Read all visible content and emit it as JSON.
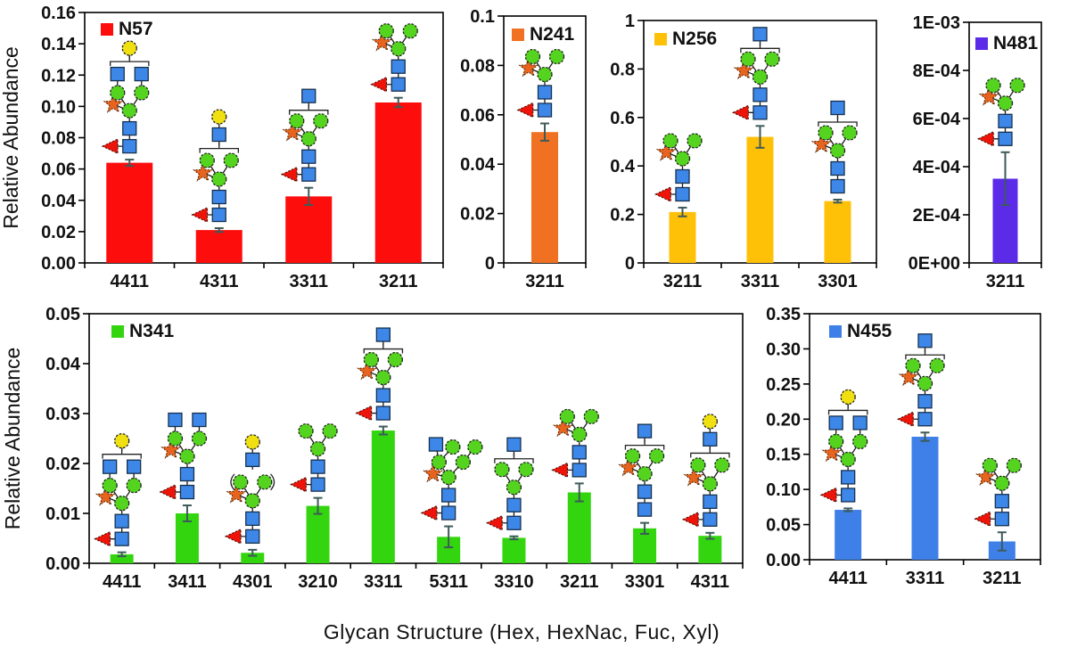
{
  "figure": {
    "xlabel": "Glycan Structure (Hex, HexNac, Fuc, Xyl)",
    "background": "#FFFFFF",
    "axis_color": "#000000",
    "error_bar_color": "#3E5A5A"
  },
  "glycan_palette": {
    "green_circle": "#54D41E",
    "yellow_circle": "#F0E012",
    "blue_square": "#3D87E8",
    "red_triangle": "#EE1409",
    "orange_star": "#E8641E"
  },
  "chart_data": [
    {
      "type": "bar",
      "site": "N57",
      "bar_color": "#FE0D0D",
      "ylabel": "Relative Abundance",
      "ymin": 0,
      "ymax": 0.16,
      "yticks": [
        "0.16",
        "0.14",
        "0.12",
        "0.10",
        "0.08",
        "0.06",
        "0.04",
        "0.02",
        "0.00"
      ],
      "categories": [
        "4411",
        "4311",
        "3311",
        "3211"
      ],
      "values": [
        0.064,
        0.021,
        0.0425,
        0.1025
      ],
      "errors": [
        0.002,
        0.0012,
        0.0055,
        0.003
      ],
      "glycans": [
        "4411",
        "4311",
        "3311",
        "3211"
      ],
      "legend_position": "top-left",
      "grid": false
    },
    {
      "type": "bar",
      "site": "N241",
      "bar_color": "#F07122",
      "ylabel": "",
      "ymin": 0,
      "ymax": 0.1,
      "yticks": [
        "0.1",
        "0.08",
        "0.06",
        "0.04",
        "0.02",
        "0"
      ],
      "categories": [
        "3211"
      ],
      "values": [
        0.053
      ],
      "errors": [
        0.0035
      ],
      "glycans": [
        "3211"
      ],
      "legend_position": "top-left",
      "grid": false
    },
    {
      "type": "bar",
      "site": "N256",
      "bar_color": "#FFC008",
      "ylabel": "",
      "ymin": 0,
      "ymax": 1,
      "yticks": [
        "1",
        "0.8",
        "0.6",
        "0.4",
        "0.2",
        "0"
      ],
      "categories": [
        "3211",
        "3311",
        "3301"
      ],
      "values": [
        0.21,
        0.52,
        0.255
      ],
      "errors": [
        0.018,
        0.045,
        0.006
      ],
      "glycans": [
        "3211",
        "3311",
        "3301"
      ],
      "legend_position": "top-left",
      "grid": false
    },
    {
      "type": "bar",
      "site": "N481",
      "bar_color": "#5B2BE8",
      "ylabel": "",
      "ymin": 0,
      "ymax": 0.001,
      "yticks": [
        "1E-03",
        "8E-04",
        "6E-04",
        "4E-04",
        "2E-04",
        "0E+00"
      ],
      "categories": [
        "3211"
      ],
      "values": [
        0.00035
      ],
      "errors": [
        0.00011
      ],
      "glycans": [
        "3211"
      ],
      "legend_position": "top-left",
      "grid": false
    },
    {
      "type": "bar",
      "site": "N341",
      "bar_color": "#33D60E",
      "ylabel": "Relative Abundance",
      "ymin": 0,
      "ymax": 0.05,
      "yticks": [
        "0.05",
        "0.04",
        "0.03",
        "0.02",
        "0.01",
        "0.00"
      ],
      "categories": [
        "4411",
        "3411",
        "4301",
        "3210",
        "3311",
        "5311",
        "3310",
        "3211",
        "3301",
        "4311"
      ],
      "values": [
        0.0018,
        0.01,
        0.0021,
        0.0115,
        0.0266,
        0.0053,
        0.0051,
        0.0142,
        0.007,
        0.0055
      ],
      "errors": [
        0.0004,
        0.0016,
        0.0006,
        0.0016,
        0.0008,
        0.0021,
        0.0003,
        0.0018,
        0.0011,
        0.0006
      ],
      "glycans": [
        "4411",
        "3411",
        "4301",
        "3210",
        "3311",
        "5311",
        "3310",
        "3211",
        "3301",
        "4311"
      ],
      "legend_position": "top-left",
      "grid": false
    },
    {
      "type": "bar",
      "site": "N455",
      "bar_color": "#3F80E8",
      "ylabel": "",
      "ymin": 0,
      "ymax": 0.35,
      "yticks": [
        "0.35",
        "0.30",
        "0.25",
        "0.20",
        "0.15",
        "0.10",
        "0.05",
        "0.00"
      ],
      "categories": [
        "4411",
        "3311",
        "3211"
      ],
      "values": [
        0.071,
        0.175,
        0.026
      ],
      "errors": [
        0.002,
        0.006,
        0.013
      ],
      "glycans": [
        "4411",
        "3311",
        "3211"
      ],
      "legend_position": "top-left",
      "grid": false
    }
  ],
  "glycan_shapes": {
    "3211": {
      "nodes": [
        [
          "rt",
          -1.5,
          0
        ],
        [
          "bs",
          0,
          0
        ],
        [
          "bs",
          0,
          1
        ],
        [
          "gc",
          0,
          2
        ],
        [
          "os",
          -1.35,
          2.35
        ],
        [
          "gc",
          -1,
          3
        ],
        [
          "gc",
          1,
          3
        ]
      ],
      "links": [
        [
          -1.5,
          0,
          0,
          0
        ],
        [
          0,
          0,
          0,
          2
        ],
        [
          -1.35,
          2.35,
          0,
          2
        ],
        [
          -1,
          3,
          0,
          2
        ],
        [
          1,
          3,
          0,
          2
        ]
      ]
    },
    "3311": {
      "nodes": [
        [
          "rt",
          -1.5,
          0
        ],
        [
          "bs",
          0,
          0
        ],
        [
          "bs",
          0,
          1
        ],
        [
          "gc",
          0,
          2
        ],
        [
          "os",
          -1.35,
          2.35
        ],
        [
          "gc",
          -1,
          3
        ],
        [
          "gc",
          1,
          3
        ],
        [
          "br",
          0,
          3.6,
          3.2
        ],
        [
          "bs",
          0,
          4.4
        ]
      ],
      "links": [
        [
          -1.5,
          0,
          0,
          0
        ],
        [
          0,
          0,
          0,
          2
        ],
        [
          -1.35,
          2.35,
          0,
          2
        ],
        [
          -1,
          3,
          0,
          2
        ],
        [
          1,
          3,
          0,
          2
        ],
        [
          0,
          4.4,
          0,
          3.75
        ]
      ]
    },
    "3301": {
      "nodes": [
        [
          "bs",
          0,
          0
        ],
        [
          "bs",
          0,
          1
        ],
        [
          "gc",
          0,
          2
        ],
        [
          "os",
          -1.35,
          2.35
        ],
        [
          "gc",
          -1,
          3
        ],
        [
          "gc",
          1,
          3
        ],
        [
          "br",
          0,
          3.6,
          3.2
        ],
        [
          "bs",
          0,
          4.4
        ]
      ],
      "links": [
        [
          0,
          0,
          0,
          2
        ],
        [
          -1.35,
          2.35,
          0,
          2
        ],
        [
          -1,
          3,
          0,
          2
        ],
        [
          1,
          3,
          0,
          2
        ],
        [
          0,
          4.4,
          0,
          3.75
        ]
      ]
    },
    "3310": {
      "nodes": [
        [
          "rt",
          -1.5,
          0
        ],
        [
          "bs",
          0,
          0
        ],
        [
          "bs",
          0,
          1
        ],
        [
          "gc",
          0,
          2
        ],
        [
          "gc",
          -1,
          3
        ],
        [
          "gc",
          1,
          3
        ],
        [
          "br",
          0,
          3.6,
          3.2
        ],
        [
          "bs",
          0,
          4.4
        ]
      ],
      "links": [
        [
          -1.5,
          0,
          0,
          0
        ],
        [
          0,
          0,
          0,
          2
        ],
        [
          -1,
          3,
          0,
          2
        ],
        [
          1,
          3,
          0,
          2
        ],
        [
          0,
          4.4,
          0,
          3.75
        ]
      ]
    },
    "3210": {
      "nodes": [
        [
          "rt",
          -1.5,
          0
        ],
        [
          "bs",
          0,
          0
        ],
        [
          "bs",
          0,
          1
        ],
        [
          "gc",
          0,
          2
        ],
        [
          "gc",
          -1,
          3
        ],
        [
          "gc",
          1,
          3
        ]
      ],
      "links": [
        [
          -1.5,
          0,
          0,
          0
        ],
        [
          0,
          0,
          0,
          2
        ],
        [
          -1,
          3,
          0,
          2
        ],
        [
          1,
          3,
          0,
          2
        ]
      ]
    },
    "3411": {
      "nodes": [
        [
          "rt",
          -1.5,
          0
        ],
        [
          "bs",
          0,
          0
        ],
        [
          "bs",
          0,
          1
        ],
        [
          "gc",
          0,
          2
        ],
        [
          "os",
          -1.35,
          2.35
        ],
        [
          "gc",
          -1,
          3
        ],
        [
          "gc",
          1,
          3
        ],
        [
          "bs",
          -1,
          4.05
        ],
        [
          "bs",
          1,
          4.05
        ]
      ],
      "links": [
        [
          -1.5,
          0,
          0,
          0
        ],
        [
          0,
          0,
          0,
          2
        ],
        [
          -1.35,
          2.35,
          0,
          2
        ],
        [
          -1,
          3,
          0,
          2
        ],
        [
          1,
          3,
          0,
          2
        ],
        [
          -1,
          4.05,
          -1,
          3
        ],
        [
          1,
          4.05,
          1,
          3
        ]
      ]
    },
    "4411": {
      "nodes": [
        [
          "rt",
          -1.5,
          0
        ],
        [
          "bs",
          0,
          0
        ],
        [
          "bs",
          0,
          1
        ],
        [
          "gc",
          0,
          2
        ],
        [
          "os",
          -1.35,
          2.35
        ],
        [
          "gc",
          -1,
          3
        ],
        [
          "gc",
          1,
          3
        ],
        [
          "bs",
          -1,
          4.05
        ],
        [
          "bs",
          1,
          4.05
        ],
        [
          "br",
          0,
          4.75,
          3.2
        ],
        [
          "yc",
          0,
          5.5
        ]
      ],
      "links": [
        [
          -1.5,
          0,
          0,
          0
        ],
        [
          0,
          0,
          0,
          2
        ],
        [
          -1.35,
          2.35,
          0,
          2
        ],
        [
          -1,
          3,
          0,
          2
        ],
        [
          1,
          3,
          0,
          2
        ],
        [
          -1,
          4.05,
          -1,
          3
        ],
        [
          1,
          4.05,
          1,
          3
        ],
        [
          0,
          5.5,
          0,
          4.9
        ]
      ]
    },
    "4311": {
      "nodes": [
        [
          "rt",
          -1.5,
          0
        ],
        [
          "bs",
          0,
          0
        ],
        [
          "bs",
          0,
          1
        ],
        [
          "gc",
          0,
          2
        ],
        [
          "os",
          -1.35,
          2.35
        ],
        [
          "gc",
          -1,
          3.05
        ],
        [
          "gc",
          1,
          3.05
        ],
        [
          "br",
          0,
          3.72,
          3.2
        ],
        [
          "bs",
          0,
          4.5
        ],
        [
          "yc",
          0,
          5.5
        ]
      ],
      "links": [
        [
          -1.5,
          0,
          0,
          0
        ],
        [
          0,
          0,
          0,
          2
        ],
        [
          -1.35,
          2.35,
          0,
          2
        ],
        [
          -1,
          3.05,
          0,
          2
        ],
        [
          1,
          3.05,
          0,
          2
        ],
        [
          0,
          5.5,
          0,
          4.5
        ],
        [
          0,
          4.5,
          0,
          3.87
        ]
      ]
    },
    "4301": {
      "nodes": [
        [
          "rt",
          -1.5,
          0
        ],
        [
          "bs",
          0,
          0
        ],
        [
          "bs",
          0,
          1
        ],
        [
          "gc",
          0,
          2
        ],
        [
          "os",
          -1.35,
          2.35
        ],
        [
          "gc",
          -1,
          3.05
        ],
        [
          "gc",
          1,
          3.05
        ],
        [
          "pr",
          0,
          3.05,
          3.6
        ],
        [
          "bs",
          0,
          4.3
        ],
        [
          "yc",
          0,
          5.3
        ]
      ],
      "links": [
        [
          -1.5,
          0,
          0,
          0
        ],
        [
          0,
          0,
          0,
          2
        ],
        [
          -1.35,
          2.35,
          0,
          2
        ],
        [
          -1,
          3.05,
          0,
          2
        ],
        [
          1,
          3.05,
          0,
          2
        ],
        [
          0,
          5.3,
          0,
          4.3
        ],
        [
          0,
          4.3,
          0,
          3.75
        ]
      ]
    },
    "5311": {
      "nodes": [
        [
          "rt",
          -1.5,
          0
        ],
        [
          "bs",
          0,
          0
        ],
        [
          "bs",
          0,
          1
        ],
        [
          "gc",
          0,
          2
        ],
        [
          "os",
          -1.3,
          2.2
        ],
        [
          "gc",
          -0.8,
          2.85
        ],
        [
          "gc",
          1.2,
          2.85
        ],
        [
          "gc",
          0.35,
          3.7
        ],
        [
          "gc",
          2.2,
          3.7
        ],
        [
          "bs",
          -1.05,
          3.85
        ]
      ],
      "links": [
        [
          -1.5,
          0,
          0,
          0
        ],
        [
          0,
          0,
          0,
          2
        ],
        [
          -1.3,
          2.2,
          0,
          2
        ],
        [
          -0.8,
          2.85,
          0,
          2
        ],
        [
          1.2,
          2.85,
          0,
          2
        ],
        [
          0.35,
          3.7,
          -0.8,
          2.85
        ],
        [
          2.2,
          3.7,
          1.2,
          2.85
        ],
        [
          -1.05,
          3.85,
          -0.8,
          2.85
        ]
      ]
    }
  }
}
